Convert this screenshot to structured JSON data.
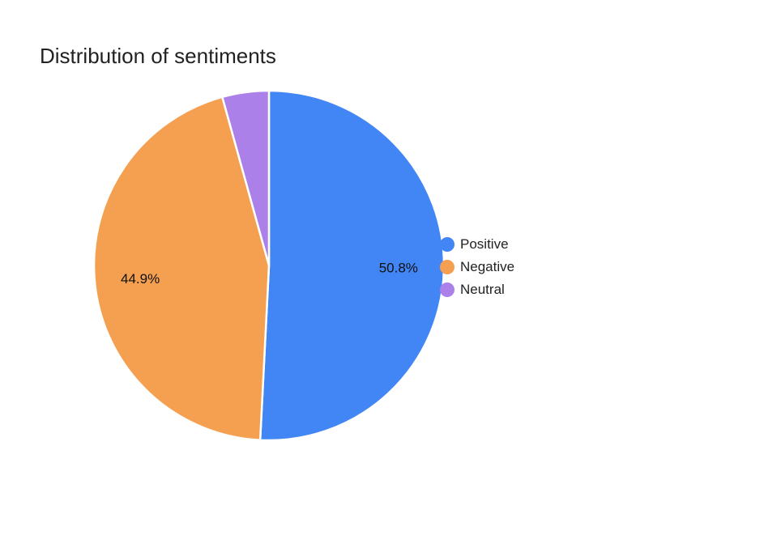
{
  "chart_data": {
    "type": "pie",
    "title": "Distribution of sentiments",
    "categories": [
      "Positive",
      "Negative",
      "Neutral"
    ],
    "values": [
      50.8,
      44.9,
      4.3
    ],
    "data_labels": [
      "50.8%",
      "44.9%",
      ""
    ],
    "colors": [
      "#4285f4",
      "#f4a050",
      "#ac80e9"
    ],
    "legend_position": "right"
  }
}
